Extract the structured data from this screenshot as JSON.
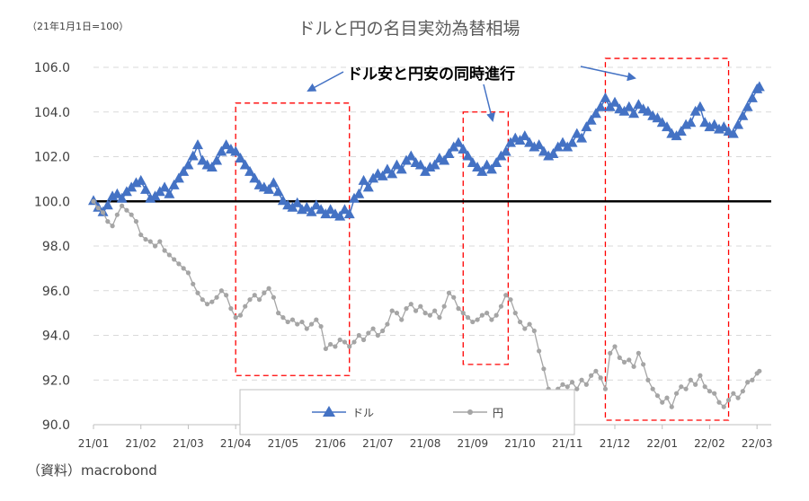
{
  "chart_data": {
    "type": "line",
    "title": "ドルと円の名目実効為替相場",
    "unit_note": "（21年1月1日=100）",
    "source": "（資料）macrobond",
    "annotation": "ドル安と円安の同時進行",
    "ylim": [
      90,
      106
    ],
    "yticks": [
      "90.0",
      "92.0",
      "94.0",
      "96.0",
      "98.0",
      "100.0",
      "102.0",
      "104.0",
      "106.0"
    ],
    "ytick_values": [
      90,
      92,
      94,
      96,
      98,
      100,
      102,
      104,
      106
    ],
    "xticks": [
      "21/01",
      "21/02",
      "21/03",
      "21/04",
      "21/05",
      "21/06",
      "21/07",
      "21/08",
      "21/09",
      "21/10",
      "21/11",
      "21/12",
      "22/01",
      "22/02",
      "22/03"
    ],
    "xlim": [
      0,
      14.3
    ],
    "baseline": 100,
    "shaded_periods": [
      {
        "y0": 92.2,
        "y1": 104.4,
        "x0": 3.0,
        "x1": 5.4
      },
      {
        "y0": 92.7,
        "y1": 104.0,
        "x0": 7.8,
        "x1": 8.75
      },
      {
        "y0": 90.2,
        "y1": 106.4,
        "x0": 10.8,
        "x1": 13.4
      }
    ],
    "series": [
      {
        "name": "ドル",
        "color": "#4472C4",
        "marker": "triangle",
        "points": [
          [
            0.0,
            100.0
          ],
          [
            0.1,
            99.7
          ],
          [
            0.2,
            99.5
          ],
          [
            0.3,
            99.8
          ],
          [
            0.4,
            100.2
          ],
          [
            0.5,
            100.3
          ],
          [
            0.6,
            100.1
          ],
          [
            0.7,
            100.4
          ],
          [
            0.8,
            100.6
          ],
          [
            0.9,
            100.8
          ],
          [
            1.0,
            100.9
          ],
          [
            1.1,
            100.5
          ],
          [
            1.2,
            100.1
          ],
          [
            1.3,
            100.2
          ],
          [
            1.4,
            100.4
          ],
          [
            1.5,
            100.6
          ],
          [
            1.6,
            100.3
          ],
          [
            1.7,
            100.7
          ],
          [
            1.8,
            101.0
          ],
          [
            1.9,
            101.3
          ],
          [
            2.0,
            101.6
          ],
          [
            2.1,
            102.0
          ],
          [
            2.2,
            102.5
          ],
          [
            2.3,
            101.8
          ],
          [
            2.4,
            101.6
          ],
          [
            2.5,
            101.5
          ],
          [
            2.6,
            101.8
          ],
          [
            2.7,
            102.2
          ],
          [
            2.8,
            102.5
          ],
          [
            2.9,
            102.3
          ],
          [
            3.0,
            102.2
          ],
          [
            3.1,
            101.9
          ],
          [
            3.2,
            101.6
          ],
          [
            3.3,
            101.3
          ],
          [
            3.4,
            101.0
          ],
          [
            3.5,
            100.7
          ],
          [
            3.6,
            100.6
          ],
          [
            3.7,
            100.5
          ],
          [
            3.8,
            100.8
          ],
          [
            3.9,
            100.4
          ],
          [
            4.0,
            100.0
          ],
          [
            4.1,
            99.8
          ],
          [
            4.2,
            99.7
          ],
          [
            4.3,
            99.9
          ],
          [
            4.4,
            99.6
          ],
          [
            4.5,
            99.7
          ],
          [
            4.6,
            99.5
          ],
          [
            4.7,
            99.8
          ],
          [
            4.8,
            99.6
          ],
          [
            4.9,
            99.4
          ],
          [
            5.0,
            99.6
          ],
          [
            5.1,
            99.4
          ],
          [
            5.2,
            99.3
          ],
          [
            5.3,
            99.6
          ],
          [
            5.4,
            99.4
          ],
          [
            5.5,
            100.1
          ],
          [
            5.6,
            100.3
          ],
          [
            5.7,
            100.9
          ],
          [
            5.8,
            100.6
          ],
          [
            5.9,
            101.0
          ],
          [
            6.0,
            101.2
          ],
          [
            6.1,
            101.1
          ],
          [
            6.2,
            101.4
          ],
          [
            6.3,
            101.2
          ],
          [
            6.4,
            101.6
          ],
          [
            6.5,
            101.4
          ],
          [
            6.6,
            101.8
          ],
          [
            6.7,
            102.0
          ],
          [
            6.8,
            101.7
          ],
          [
            6.9,
            101.6
          ],
          [
            7.0,
            101.3
          ],
          [
            7.1,
            101.5
          ],
          [
            7.2,
            101.6
          ],
          [
            7.3,
            101.9
          ],
          [
            7.4,
            101.8
          ],
          [
            7.5,
            102.1
          ],
          [
            7.6,
            102.4
          ],
          [
            7.7,
            102.6
          ],
          [
            7.8,
            102.3
          ],
          [
            7.9,
            102.0
          ],
          [
            8.0,
            101.7
          ],
          [
            8.1,
            101.5
          ],
          [
            8.2,
            101.3
          ],
          [
            8.3,
            101.6
          ],
          [
            8.4,
            101.4
          ],
          [
            8.5,
            101.7
          ],
          [
            8.6,
            102.0
          ],
          [
            8.7,
            102.2
          ],
          [
            8.8,
            102.6
          ],
          [
            8.9,
            102.8
          ],
          [
            9.0,
            102.7
          ],
          [
            9.1,
            102.9
          ],
          [
            9.2,
            102.6
          ],
          [
            9.3,
            102.4
          ],
          [
            9.4,
            102.5
          ],
          [
            9.5,
            102.2
          ],
          [
            9.6,
            102.0
          ],
          [
            9.7,
            102.1
          ],
          [
            9.8,
            102.4
          ],
          [
            9.9,
            102.6
          ],
          [
            10.0,
            102.4
          ],
          [
            10.1,
            102.6
          ],
          [
            10.2,
            103.0
          ],
          [
            10.3,
            102.8
          ],
          [
            10.4,
            103.3
          ],
          [
            10.5,
            103.6
          ],
          [
            10.6,
            103.9
          ],
          [
            10.7,
            104.2
          ],
          [
            10.8,
            104.6
          ],
          [
            10.9,
            104.2
          ],
          [
            11.0,
            104.4
          ],
          [
            11.1,
            104.1
          ],
          [
            11.2,
            104.0
          ],
          [
            11.3,
            104.2
          ],
          [
            11.4,
            103.9
          ],
          [
            11.5,
            104.3
          ],
          [
            11.6,
            104.1
          ],
          [
            11.7,
            104.0
          ],
          [
            11.8,
            103.8
          ],
          [
            11.9,
            103.7
          ],
          [
            12.0,
            103.5
          ],
          [
            12.1,
            103.3
          ],
          [
            12.2,
            103.0
          ],
          [
            12.3,
            102.9
          ],
          [
            12.4,
            103.1
          ],
          [
            12.5,
            103.4
          ],
          [
            12.6,
            103.5
          ],
          [
            12.7,
            104.0
          ],
          [
            12.8,
            104.2
          ],
          [
            12.9,
            103.5
          ],
          [
            13.0,
            103.3
          ],
          [
            13.1,
            103.4
          ],
          [
            13.2,
            103.2
          ],
          [
            13.3,
            103.3
          ],
          [
            13.4,
            103.1
          ],
          [
            13.5,
            103.0
          ],
          [
            13.6,
            103.4
          ],
          [
            13.7,
            103.8
          ],
          [
            13.8,
            104.2
          ],
          [
            13.9,
            104.6
          ],
          [
            14.0,
            105.0
          ],
          [
            14.05,
            105.1
          ]
        ]
      },
      {
        "name": "円",
        "color": "#A5A5A5",
        "marker": "circle",
        "points": [
          [
            0.0,
            100.0
          ],
          [
            0.1,
            99.7
          ],
          [
            0.2,
            99.5
          ],
          [
            0.3,
            99.1
          ],
          [
            0.4,
            98.9
          ],
          [
            0.5,
            99.4
          ],
          [
            0.6,
            99.8
          ],
          [
            0.7,
            99.6
          ],
          [
            0.8,
            99.4
          ],
          [
            0.9,
            99.1
          ],
          [
            1.0,
            98.5
          ],
          [
            1.1,
            98.3
          ],
          [
            1.2,
            98.2
          ],
          [
            1.3,
            98.0
          ],
          [
            1.4,
            98.2
          ],
          [
            1.5,
            97.8
          ],
          [
            1.6,
            97.6
          ],
          [
            1.7,
            97.4
          ],
          [
            1.8,
            97.2
          ],
          [
            1.9,
            97.0
          ],
          [
            2.0,
            96.8
          ],
          [
            2.1,
            96.3
          ],
          [
            2.2,
            95.9
          ],
          [
            2.3,
            95.6
          ],
          [
            2.4,
            95.4
          ],
          [
            2.5,
            95.5
          ],
          [
            2.6,
            95.7
          ],
          [
            2.7,
            96.0
          ],
          [
            2.8,
            95.8
          ],
          [
            2.9,
            95.2
          ],
          [
            3.0,
            94.8
          ],
          [
            3.1,
            94.9
          ],
          [
            3.2,
            95.3
          ],
          [
            3.3,
            95.6
          ],
          [
            3.4,
            95.8
          ],
          [
            3.5,
            95.6
          ],
          [
            3.6,
            95.9
          ],
          [
            3.7,
            96.1
          ],
          [
            3.8,
            95.7
          ],
          [
            3.9,
            95.0
          ],
          [
            4.0,
            94.8
          ],
          [
            4.1,
            94.6
          ],
          [
            4.2,
            94.7
          ],
          [
            4.3,
            94.5
          ],
          [
            4.4,
            94.6
          ],
          [
            4.5,
            94.3
          ],
          [
            4.6,
            94.5
          ],
          [
            4.7,
            94.7
          ],
          [
            4.8,
            94.4
          ],
          [
            4.9,
            93.4
          ],
          [
            5.0,
            93.6
          ],
          [
            5.1,
            93.5
          ],
          [
            5.2,
            93.8
          ],
          [
            5.3,
            93.7
          ],
          [
            5.4,
            93.5
          ],
          [
            5.5,
            93.7
          ],
          [
            5.6,
            94.0
          ],
          [
            5.7,
            93.8
          ],
          [
            5.8,
            94.1
          ],
          [
            5.9,
            94.3
          ],
          [
            6.0,
            94.0
          ],
          [
            6.1,
            94.2
          ],
          [
            6.2,
            94.5
          ],
          [
            6.3,
            95.1
          ],
          [
            6.4,
            95.0
          ],
          [
            6.5,
            94.7
          ],
          [
            6.6,
            95.2
          ],
          [
            6.7,
            95.4
          ],
          [
            6.8,
            95.1
          ],
          [
            6.9,
            95.3
          ],
          [
            7.0,
            95.0
          ],
          [
            7.1,
            94.9
          ],
          [
            7.2,
            95.1
          ],
          [
            7.3,
            94.8
          ],
          [
            7.4,
            95.3
          ],
          [
            7.5,
            95.9
          ],
          [
            7.6,
            95.7
          ],
          [
            7.7,
            95.2
          ],
          [
            7.8,
            95.0
          ],
          [
            7.9,
            94.8
          ],
          [
            8.0,
            94.6
          ],
          [
            8.1,
            94.7
          ],
          [
            8.2,
            94.9
          ],
          [
            8.3,
            95.0
          ],
          [
            8.4,
            94.7
          ],
          [
            8.5,
            94.9
          ],
          [
            8.6,
            95.3
          ],
          [
            8.7,
            95.8
          ],
          [
            8.8,
            95.6
          ],
          [
            8.9,
            95.0
          ],
          [
            9.0,
            94.6
          ],
          [
            9.1,
            94.3
          ],
          [
            9.2,
            94.5
          ],
          [
            9.3,
            94.2
          ],
          [
            9.4,
            93.3
          ],
          [
            9.5,
            92.5
          ],
          [
            9.6,
            91.6
          ],
          [
            9.7,
            91.2
          ],
          [
            9.8,
            91.6
          ],
          [
            9.9,
            91.8
          ],
          [
            10.0,
            91.7
          ],
          [
            10.1,
            91.9
          ],
          [
            10.2,
            91.6
          ],
          [
            10.3,
            92.0
          ],
          [
            10.4,
            91.8
          ],
          [
            10.5,
            92.2
          ],
          [
            10.6,
            92.4
          ],
          [
            10.7,
            92.1
          ],
          [
            10.8,
            91.6
          ],
          [
            10.9,
            93.2
          ],
          [
            11.0,
            93.5
          ],
          [
            11.1,
            93.0
          ],
          [
            11.2,
            92.8
          ],
          [
            11.3,
            92.9
          ],
          [
            11.4,
            92.6
          ],
          [
            11.5,
            93.2
          ],
          [
            11.6,
            92.7
          ],
          [
            11.7,
            92.0
          ],
          [
            11.8,
            91.6
          ],
          [
            11.9,
            91.3
          ],
          [
            12.0,
            91.0
          ],
          [
            12.1,
            91.2
          ],
          [
            12.2,
            90.8
          ],
          [
            12.3,
            91.4
          ],
          [
            12.4,
            91.7
          ],
          [
            12.5,
            91.6
          ],
          [
            12.6,
            92.0
          ],
          [
            12.7,
            91.8
          ],
          [
            12.8,
            92.2
          ],
          [
            12.9,
            91.7
          ],
          [
            13.0,
            91.5
          ],
          [
            13.1,
            91.4
          ],
          [
            13.2,
            91.0
          ],
          [
            13.3,
            90.8
          ],
          [
            13.4,
            91.1
          ],
          [
            13.5,
            91.4
          ],
          [
            13.6,
            91.2
          ],
          [
            13.7,
            91.5
          ],
          [
            13.8,
            91.9
          ],
          [
            13.9,
            92.0
          ],
          [
            14.0,
            92.3
          ],
          [
            14.05,
            92.4
          ]
        ]
      }
    ]
  }
}
